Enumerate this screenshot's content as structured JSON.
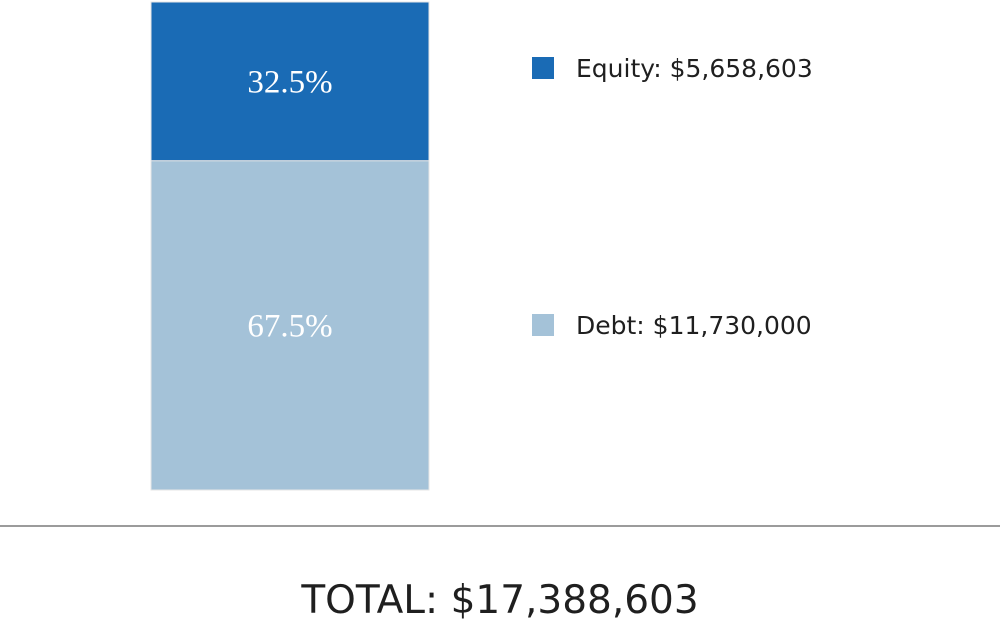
{
  "chart_data": {
    "type": "bar",
    "stacked": true,
    "categories": [
      ""
    ],
    "series": [
      {
        "name": "Equity",
        "values": [
          5658603
        ],
        "percent_label": "32.5%",
        "legend_label": "Equity: $5,658,603",
        "color": "#1a6bb5"
      },
      {
        "name": "Debt",
        "values": [
          11730000
        ],
        "percent_label": "67.5%",
        "legend_label": "Debt: $11,730,000",
        "color": "#a4c2d8"
      }
    ],
    "total_label": "TOTAL: $17,388,603",
    "legend_position": "right",
    "grid": false,
    "colors": {
      "baseline": "#7a7a7a",
      "bar_border": "#e6e6e6"
    }
  }
}
